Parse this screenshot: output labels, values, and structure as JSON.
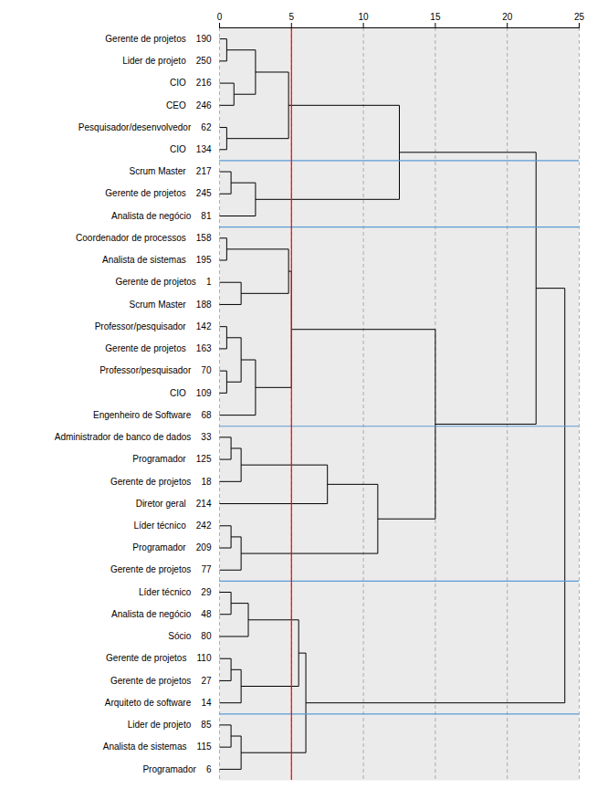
{
  "chart_data": {
    "type": "dendrogram",
    "categories": [
      "Gerente de projetos    190",
      "Lider de projeto    250",
      "CIO    216",
      "CEO    246",
      "Pesquisador/desenvolvedor    62",
      "CIO    134",
      "Scrum Master    217",
      "Gerente de projetos    245",
      "Analista de negócio    81",
      "Coordenador de processos    158",
      "Analista de sistemas    195",
      "Gerente de projetos    1",
      "Scrum Master    188",
      "Professor/pesquisador    142",
      "Gerente de projetos    163",
      "Professor/pesquisador    70",
      "CIO    109",
      "Engenheiro de Software    68",
      "Administrador de banco de dados    33",
      "Programador    125",
      "Gerente de projetos    18",
      "Diretor geral    214",
      "Líder técnico    242",
      "Programador    209",
      "Gerente de projetos    77",
      "Líder técnico    29",
      "Analista de negócio    48",
      "Sócio    80",
      "Gerente de projetos    110",
      "Gerente de projetos    27",
      "Arquiteto de software    14",
      "Lider de projeto    85",
      "Analista de sistemas    115",
      "Programador    6"
    ],
    "merges": [
      {
        "left": 0,
        "right": 1,
        "height": 0.5
      },
      {
        "left": 2,
        "right": 3,
        "height": 1.0
      },
      {
        "left": 34,
        "right": 35,
        "height": 2.5
      },
      {
        "left": 4,
        "right": 5,
        "height": 0.5
      },
      {
        "left": 36,
        "right": 37,
        "height": 4.8
      },
      {
        "left": 6,
        "right": 7,
        "height": 0.8
      },
      {
        "left": 39,
        "right": 8,
        "height": 2.5
      },
      {
        "left": 38,
        "right": 40,
        "height": 12.5
      },
      {
        "left": 9,
        "right": 10,
        "height": 0.5
      },
      {
        "left": 11,
        "right": 12,
        "height": 1.5
      },
      {
        "left": 42,
        "right": 43,
        "height": 4.8
      },
      {
        "left": 13,
        "right": 14,
        "height": 0.5
      },
      {
        "left": 15,
        "right": 16,
        "height": 0.5
      },
      {
        "left": 45,
        "right": 46,
        "height": 1.5
      },
      {
        "left": 17,
        "right": 47,
        "height": 2.5
      },
      {
        "left": 44,
        "right": 48,
        "height": 5.0
      },
      {
        "left": 18,
        "right": 19,
        "height": 0.8
      },
      {
        "left": 20,
        "right": 50,
        "height": 1.5
      },
      {
        "left": 21,
        "right": 51,
        "height": 7.5
      },
      {
        "left": 22,
        "right": 23,
        "height": 0.8
      },
      {
        "left": 53,
        "right": 24,
        "height": 1.5
      },
      {
        "left": 52,
        "right": 54,
        "height": 11.0
      },
      {
        "left": 49,
        "right": 55,
        "height": 15.0
      },
      {
        "left": 41,
        "right": 56,
        "height": 22.0
      },
      {
        "left": 25,
        "right": 26,
        "height": 0.8
      },
      {
        "left": 27,
        "right": 58,
        "height": 2.0
      },
      {
        "left": 28,
        "right": 29,
        "height": 0.8
      },
      {
        "left": 30,
        "right": 60,
        "height": 1.5
      },
      {
        "left": 59,
        "right": 61,
        "height": 5.5
      },
      {
        "left": 31,
        "right": 32,
        "height": 0.8
      },
      {
        "left": 63,
        "right": 33,
        "height": 1.5
      },
      {
        "left": 62,
        "right": 64,
        "height": 6.0
      },
      {
        "left": 57,
        "right": 65,
        "height": 24.0
      }
    ],
    "color": "black",
    "separators": {
      "after": [
        5,
        8,
        17,
        24,
        30
      ],
      "color": "#5b9bd5"
    },
    "vlines": [
      {
        "x": 5,
        "color": "red"
      }
    ],
    "xlim": [
      0,
      25
    ],
    "xticks": [
      0,
      5,
      10,
      15,
      20,
      25
    ],
    "grid": true,
    "background_color": "#ebebeb"
  }
}
